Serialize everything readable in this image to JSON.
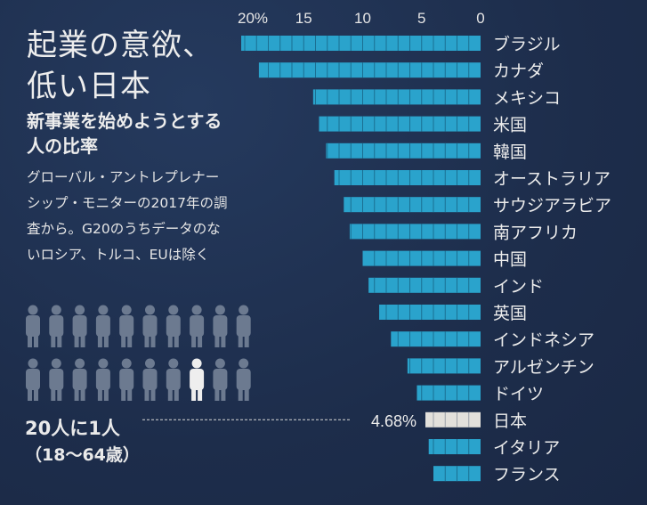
{
  "title_line1": "起業の意欲、",
  "title_line2": "低い日本",
  "subtitle_line1": "新事業を始めようとする",
  "subtitle_line2": "人の比率",
  "description": [
    "グローバル・アントレプレナー",
    "シップ・モニターの2017年の調",
    "査から。G20のうちデータのな",
    "いロシア、トルコ、EUは除く"
  ],
  "callout": {
    "ratio_text": "20人に1人",
    "age_text": "（18～64歳）",
    "japan_value_label": "4.68%",
    "people_total": 20,
    "people_highlighted_index": 17
  },
  "colors": {
    "bar": "#2aa3cc",
    "highlight_bar": "#e2e0db",
    "background": "#1f3050",
    "person": "#6c7a90",
    "person_highlight": "#eeeeee"
  },
  "chart_data": {
    "type": "bar",
    "orientation": "horizontal",
    "direction": "right-to-left",
    "title": "新事業を始めようとする人の比率",
    "xlabel": "",
    "ylabel": "",
    "xlim": [
      0,
      20
    ],
    "ticks": [
      20,
      15,
      10,
      5,
      0
    ],
    "tick_labels": [
      "20%",
      "15",
      "10",
      "5",
      "0"
    ],
    "grid": false,
    "categories": [
      "ブラジル",
      "カナダ",
      "メキシコ",
      "米国",
      "韓国",
      "オーストラリア",
      "サウジアラビア",
      "南アフリカ",
      "中国",
      "インド",
      "英国",
      "インドネシア",
      "アルゼンチン",
      "ドイツ",
      "日本",
      "イタリア",
      "フランス"
    ],
    "values": [
      20.3,
      18.8,
      14.2,
      13.7,
      13.1,
      12.4,
      11.6,
      11.1,
      10.0,
      9.5,
      8.6,
      7.6,
      6.2,
      5.4,
      4.68,
      4.4,
      4.0
    ],
    "highlight": "日本"
  }
}
